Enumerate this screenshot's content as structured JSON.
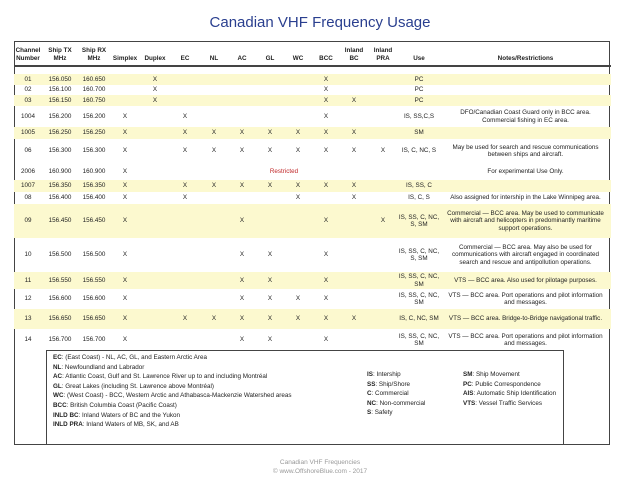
{
  "title": "Canadian VHF Frequency Usage",
  "columns": [
    "Channel\nNumber",
    "Ship TX\nMHz",
    "Ship RX\nMHz",
    "Simplex",
    "Duplex",
    "EC",
    "NL",
    "AC",
    "GL",
    "WC",
    "BCC",
    "Inland\nBC",
    "Inland\nPRA",
    "Use",
    "Notes/Restrictions"
  ],
  "highlight_color": "#fcf9cf",
  "rows": [
    {
      "ch": "01",
      "tx": "156.050",
      "rx": "160.650",
      "marks": [
        "",
        "X",
        "",
        "",
        "",
        "",
        "",
        "X",
        "",
        ""
      ],
      "use": "PC",
      "notes": "",
      "hl": true
    },
    {
      "ch": "02",
      "tx": "156.100",
      "rx": "160.700",
      "marks": [
        "",
        "X",
        "",
        "",
        "",
        "",
        "",
        "X",
        "",
        ""
      ],
      "use": "PC",
      "notes": "",
      "hl": false
    },
    {
      "ch": "03",
      "tx": "156.150",
      "rx": "160.750",
      "marks": [
        "",
        "X",
        "",
        "",
        "",
        "",
        "",
        "X",
        "X",
        ""
      ],
      "use": "PC",
      "notes": "",
      "hl": true
    },
    {
      "ch": "1004",
      "tx": "156.200",
      "rx": "156.200",
      "marks": [
        "X",
        "",
        "X",
        "",
        "",
        "",
        "",
        "X",
        "",
        ""
      ],
      "use": "IS, SS,C,S",
      "notes": "DFO/Canadian Coast Guard only in BCC area. Commercial fishing in EC area.",
      "hl": false
    },
    {
      "ch": "1005",
      "tx": "156.250",
      "rx": "156.250",
      "marks": [
        "X",
        "",
        "X",
        "X",
        "X",
        "X",
        "X",
        "X",
        "X",
        ""
      ],
      "use": "SM",
      "notes": "",
      "hl": true
    },
    {
      "ch": "06",
      "tx": "156.300",
      "rx": "156.300",
      "marks": [
        "X",
        "",
        "X",
        "X",
        "X",
        "X",
        "X",
        "X",
        "X",
        "X"
      ],
      "use": "IS, C, NC, S",
      "notes": "May be used for search and rescue communications between ships and aircraft.",
      "hl": false
    },
    {
      "ch": "2006",
      "tx": "160.900",
      "rx": "160.900",
      "marks": [
        "X",
        "",
        "",
        "",
        "",
        "",
        "",
        "",
        "",
        ""
      ],
      "restricted": "Restricted",
      "use": "",
      "notes": "For experimental Use Only.",
      "hl": false
    },
    {
      "ch": "1007",
      "tx": "156.350",
      "rx": "156.350",
      "marks": [
        "X",
        "",
        "X",
        "X",
        "X",
        "X",
        "X",
        "X",
        "X",
        ""
      ],
      "use": "IS, SS, C",
      "notes": "",
      "hl": true
    },
    {
      "ch": "08",
      "tx": "156.400",
      "rx": "156.400",
      "marks": [
        "X",
        "",
        "X",
        "",
        "",
        "",
        "X",
        "",
        "X",
        ""
      ],
      "use": "IS, C, S",
      "notes": "Also assigned for intership in the Lake Winnipeg area.",
      "hl": false
    },
    {
      "ch": "09",
      "tx": "156.450",
      "rx": "156.450",
      "marks": [
        "X",
        "",
        "",
        "",
        "X",
        "",
        "",
        "X",
        "",
        "X"
      ],
      "use": "IS, SS, C, NC, S, SM",
      "notes": "Commercial — BCC area. May be used to communicate with aircraft and helicopters in predominantly maritime support operations.",
      "hl": true
    },
    {
      "ch": "10",
      "tx": "156.500",
      "rx": "156.500",
      "marks": [
        "X",
        "",
        "",
        "",
        "X",
        "X",
        "",
        "X",
        "",
        ""
      ],
      "use": "IS, SS, C, NC, S, SM",
      "notes": "Commercial — BCC area. May also be used for communications with aircraft engaged in coordinated search and rescue and antipollution operations.",
      "hl": false
    },
    {
      "ch": "11",
      "tx": "156.550",
      "rx": "156.550",
      "marks": [
        "X",
        "",
        "",
        "",
        "X",
        "X",
        "",
        "X",
        "",
        ""
      ],
      "use": "IS, SS, C, NC, SM",
      "notes": "VTS — BCC area. Also used for pilotage purposes.",
      "hl": true
    },
    {
      "ch": "12",
      "tx": "156.600",
      "rx": "156.600",
      "marks": [
        "X",
        "",
        "",
        "",
        "X",
        "X",
        "X",
        "X",
        "",
        ""
      ],
      "use": "IS, SS, C, NC, SM",
      "notes": "VTS — BCC area. Port operations and pilot information and messages.",
      "hl": false
    },
    {
      "ch": "13",
      "tx": "156.650",
      "rx": "156.650",
      "marks": [
        "X",
        "",
        "X",
        "X",
        "X",
        "X",
        "X",
        "X",
        "X",
        ""
      ],
      "use": "IS, C, NC, SM",
      "notes": "VTS — BCC area. Bridge-to-Bridge navigational traffic.",
      "hl": true
    },
    {
      "ch": "14",
      "tx": "156.700",
      "rx": "156.700",
      "marks": [
        "X",
        "",
        "",
        "",
        "X",
        "X",
        "",
        "X",
        "",
        ""
      ],
      "use": "IS, SS, C, NC, SM",
      "notes": "VTS — BCC area. Port operations and pilot information and messages.",
      "hl": false
    }
  ],
  "legend": {
    "regions": [
      {
        "abbr": "EC",
        "text": ": (East Coast) - NL, AC, GL, and Eastern Arctic Area"
      },
      {
        "abbr": "NL",
        "text": ": Newfoundland and Labrador"
      },
      {
        "abbr": "AC",
        "text": ": Atlantic Coast, Gulf and St. Lawrence River up to and including Montréal"
      },
      {
        "abbr": "GL",
        "text": ": Great Lakes (including St. Lawrence above Montréal)"
      },
      {
        "abbr": "WC",
        "text": ": (West Coast) - BCC, Western Arctic and Athabasca-Mackenzie Watershed areas"
      },
      {
        "abbr": "BCC",
        "text": ": British Columbia Coast (Pacific Coast)"
      },
      {
        "abbr": "INLD BC",
        "text": ": Inland Waters of BC and the Yukon"
      },
      {
        "abbr": "INLD PRA",
        "text": ": Inland Waters of MB, SK, and AB"
      }
    ],
    "uses1": [
      {
        "abbr": "IS",
        "text": ": Intership"
      },
      {
        "abbr": "SS",
        "text": ": Ship/Shore"
      },
      {
        "abbr": "C",
        "text": ": Commercial"
      },
      {
        "abbr": "NC",
        "text": ": Non-commercial"
      },
      {
        "abbr": "S",
        "text": ": Safety"
      }
    ],
    "uses2": [
      {
        "abbr": "SM",
        "text": ": Ship Movement"
      },
      {
        "abbr": "PC",
        "text": ": Public Correspondence"
      },
      {
        "abbr": "AIS",
        "text": ": Automatic Ship Identification"
      },
      {
        "abbr": "VTS",
        "text": ": Vessel Traffic Services"
      }
    ]
  },
  "footer": {
    "line1": "Canadian VHF Frequencies",
    "line2": "© www.OffshoreBlue.com - 2017"
  }
}
